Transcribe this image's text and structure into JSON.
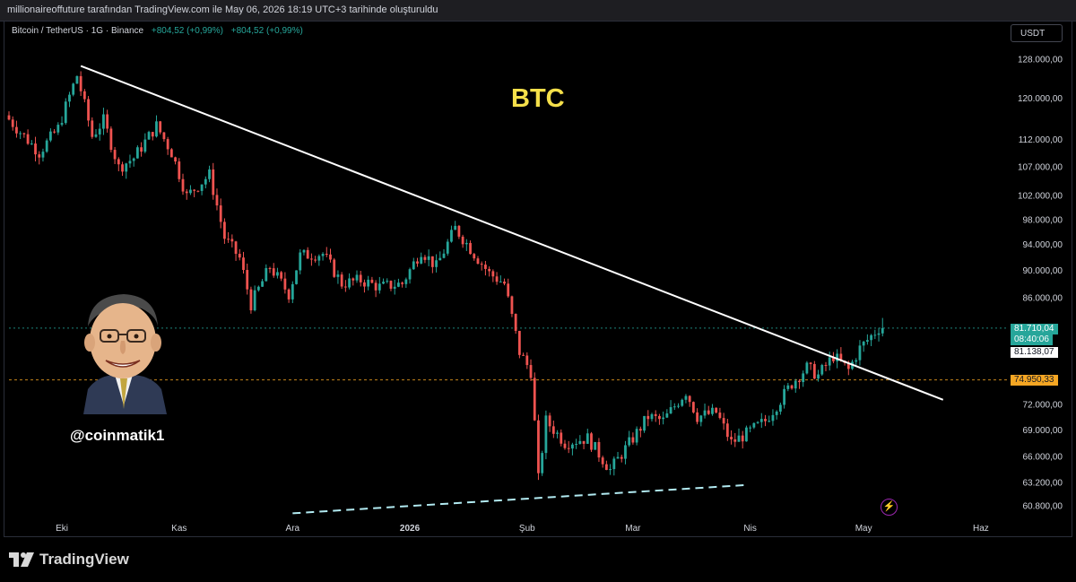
{
  "header": {
    "attribution": "millionaireoffuture tarafından TradingView.com ile May 06, 2026 18:19 UTC+3 tarihinde oluşturuldu"
  },
  "legend": {
    "symbol": "Bitcoin / TetherUS · 1G · Binance",
    "change1": "+804,52 (+0,99%)",
    "change2": "+804,52 (+0,99%)"
  },
  "currency_button": "USDT",
  "annotations": {
    "title": "BTC",
    "handle": "@coinmatik1"
  },
  "price_tags": {
    "last_price": "81.710,04",
    "countdown": "08:40:06",
    "prev_price": "81.138,07",
    "level_price": "74.950,33"
  },
  "footer": {
    "brand": "TradingView"
  },
  "colors": {
    "up": "#26a69a",
    "down": "#ef5350",
    "trendline": "#ffffff",
    "support_dashed": "#b2ebf2",
    "level_line": "#f5a623",
    "annotation_yellow": "#f5e04a"
  },
  "icons": {
    "alert": "lightning-bolt-icon",
    "brand": "tradingview-logo-icon"
  },
  "chart_data": {
    "type": "candlestick",
    "timeframe": "1G",
    "y_scale": "log",
    "y_ticks": [
      {
        "value": 128000,
        "label": "128.000,00"
      },
      {
        "value": 120000,
        "label": "120.000,00"
      },
      {
        "value": 112000,
        "label": "112.000,00"
      },
      {
        "value": 107000,
        "label": "107.000,00"
      },
      {
        "value": 102000,
        "label": "102.000,00"
      },
      {
        "value": 98000,
        "label": "98.000,00"
      },
      {
        "value": 94000,
        "label": "94.000,00"
      },
      {
        "value": 90000,
        "label": "90.000,00"
      },
      {
        "value": 86000,
        "label": "86.000,00"
      },
      {
        "value": 72000,
        "label": "72.000,00"
      },
      {
        "value": 69000,
        "label": "69.000,00"
      },
      {
        "value": 66000,
        "label": "66.000,00"
      },
      {
        "value": 63200,
        "label": "63.200,00"
      },
      {
        "value": 60800,
        "label": "60.800,00"
      }
    ],
    "x_ticks": [
      {
        "date": "2025-10-01",
        "label": "Eki"
      },
      {
        "date": "2025-11-01",
        "label": "Kas"
      },
      {
        "date": "2025-12-01",
        "label": "Ara"
      },
      {
        "date": "2026-01-01",
        "label": "2026"
      },
      {
        "date": "2026-02-01",
        "label": "Şub"
      },
      {
        "date": "2026-03-01",
        "label": "Mar"
      },
      {
        "date": "2026-04-01",
        "label": "Nis"
      },
      {
        "date": "2026-05-01",
        "label": "May"
      },
      {
        "date": "2026-06-01",
        "label": "Haz"
      }
    ],
    "x_range": [
      "2025-09-17",
      "2026-06-06"
    ],
    "y_range": [
      59500,
      133000
    ],
    "key_closes": [
      [
        "2025-09-17",
        116500
      ],
      [
        "2025-09-22",
        112500
      ],
      [
        "2025-09-26",
        109500
      ],
      [
        "2025-10-01",
        114000
      ],
      [
        "2025-10-06",
        124500
      ],
      [
        "2025-10-10",
        112500
      ],
      [
        "2025-10-13",
        115500
      ],
      [
        "2025-10-17",
        106800
      ],
      [
        "2025-10-21",
        108500
      ],
      [
        "2025-10-27",
        114500
      ],
      [
        "2025-10-31",
        109500
      ],
      [
        "2025-11-04",
        101800
      ],
      [
        "2025-11-10",
        105500
      ],
      [
        "2025-11-14",
        95000
      ],
      [
        "2025-11-18",
        91800
      ],
      [
        "2025-11-21",
        85000
      ],
      [
        "2025-11-26",
        90500
      ],
      [
        "2025-12-01",
        86500
      ],
      [
        "2025-12-04",
        92200
      ],
      [
        "2025-12-10",
        92500
      ],
      [
        "2025-12-15",
        88000
      ],
      [
        "2025-12-20",
        88500
      ],
      [
        "2025-12-25",
        87500
      ],
      [
        "2025-12-31",
        88000
      ],
      [
        "2026-01-05",
        93000
      ],
      [
        "2026-01-09",
        90500
      ],
      [
        "2026-01-14",
        96500
      ],
      [
        "2026-01-19",
        92500
      ],
      [
        "2026-01-23",
        89500
      ],
      [
        "2026-01-27",
        88000
      ],
      [
        "2026-01-31",
        78500
      ],
      [
        "2026-02-03",
        76000
      ],
      [
        "2026-02-05",
        63500
      ],
      [
        "2026-02-07",
        70000
      ],
      [
        "2026-02-12",
        67500
      ],
      [
        "2026-02-18",
        68000
      ],
      [
        "2026-02-24",
        64500
      ],
      [
        "2026-03-02",
        68000
      ],
      [
        "2026-03-06",
        70500
      ],
      [
        "2026-03-10",
        70000
      ],
      [
        "2026-03-16",
        73500
      ],
      [
        "2026-03-19",
        70500
      ],
      [
        "2026-03-24",
        71000
      ],
      [
        "2026-03-28",
        67500
      ],
      [
        "2026-04-01",
        68500
      ],
      [
        "2026-04-06",
        70000
      ],
      [
        "2026-04-10",
        72500
      ],
      [
        "2026-04-13",
        74500
      ],
      [
        "2026-04-17",
        76500
      ],
      [
        "2026-04-20",
        75500
      ],
      [
        "2026-04-24",
        78000
      ],
      [
        "2026-04-28",
        76200
      ],
      [
        "2026-05-01",
        79000
      ],
      [
        "2026-05-06",
        81710
      ]
    ],
    "trendline": {
      "from": {
        "date": "2025-10-06",
        "price": 126500
      },
      "to": {
        "date": "2026-05-22",
        "price": 72500
      }
    },
    "support_line": {
      "from": {
        "date": "2025-12-01",
        "price": 60000
      },
      "to": {
        "date": "2026-03-31",
        "price": 62900
      }
    },
    "horizontal_levels": [
      81710.04,
      74950.33
    ],
    "last_price": 81710.04
  }
}
